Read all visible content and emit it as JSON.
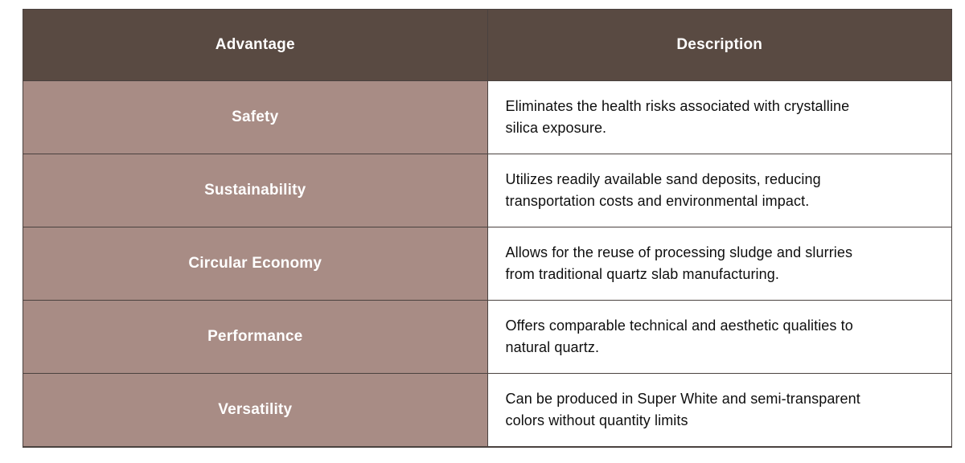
{
  "table": {
    "columns": [
      {
        "label": "Advantage"
      },
      {
        "label": "Description"
      }
    ],
    "rows": [
      {
        "advantage": "Safety",
        "description": "Eliminates the health risks associated with crystalline silica exposure."
      },
      {
        "advantage": "Sustainability",
        "description": "Utilizes readily available sand deposits, reducing transportation costs and environmental impact."
      },
      {
        "advantage": "Circular Economy",
        "description": "Allows for the reuse of processing sludge and slurries from traditional quartz slab manufacturing."
      },
      {
        "advantage": "Performance",
        "description": "Offers comparable technical and aesthetic qualities to natural quartz."
      },
      {
        "advantage": "Versatility",
        "description": "Can be produced in Super White and semi-transparent colors without quantity limits"
      }
    ],
    "colors": {
      "header_bg": "#594a42",
      "header_text": "#ffffff",
      "advantage_bg": "#a88c85",
      "advantage_text": "#ffffff",
      "description_bg": "#ffffff",
      "description_text": "#0f0f0f",
      "grid_line": "#4a423f"
    }
  }
}
